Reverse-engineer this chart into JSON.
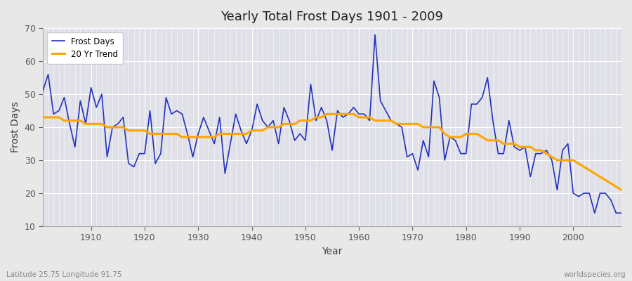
{
  "title": "Yearly Total Frost Days 1901 - 2009",
  "xlabel": "Year",
  "ylabel": "Frost Days",
  "footer_left": "Latitude 25.75 Longitude 91.75",
  "footer_right": "worldspecies.org",
  "legend_labels": [
    "Frost Days",
    "20 Yr Trend"
  ],
  "line_color": "#2233bb",
  "trend_color": "#FFA500",
  "background_color": "#e8e8e8",
  "plot_bg_color": "#e0e0e8",
  "ylim": [
    10,
    70
  ],
  "xlim": [
    1901,
    2009
  ],
  "yticks": [
    10,
    20,
    30,
    40,
    50,
    60,
    70
  ],
  "xticks": [
    1910,
    1920,
    1930,
    1940,
    1950,
    1960,
    1970,
    1980,
    1990,
    2000
  ],
  "frost_days": {
    "1901": 51,
    "1902": 56,
    "1903": 44,
    "1904": 45,
    "1905": 49,
    "1906": 41,
    "1907": 34,
    "1908": 48,
    "1909": 41,
    "1910": 52,
    "1911": 46,
    "1912": 50,
    "1913": 31,
    "1914": 40,
    "1915": 41,
    "1916": 43,
    "1917": 29,
    "1918": 28,
    "1919": 32,
    "1920": 32,
    "1921": 45,
    "1922": 29,
    "1923": 32,
    "1924": 49,
    "1925": 44,
    "1926": 45,
    "1927": 44,
    "1928": 38,
    "1929": 31,
    "1930": 38,
    "1931": 43,
    "1932": 39,
    "1933": 35,
    "1934": 43,
    "1935": 26,
    "1936": 35,
    "1937": 44,
    "1938": 39,
    "1939": 35,
    "1940": 39,
    "1941": 47,
    "1942": 42,
    "1943": 40,
    "1944": 42,
    "1945": 35,
    "1946": 46,
    "1947": 42,
    "1948": 36,
    "1949": 38,
    "1950": 36,
    "1951": 53,
    "1952": 42,
    "1953": 46,
    "1954": 42,
    "1955": 33,
    "1956": 45,
    "1957": 43,
    "1958": 44,
    "1959": 46,
    "1960": 44,
    "1961": 44,
    "1962": 42,
    "1963": 68,
    "1964": 48,
    "1965": 45,
    "1966": 42,
    "1967": 41,
    "1968": 40,
    "1969": 31,
    "1970": 32,
    "1971": 27,
    "1972": 36,
    "1973": 31,
    "1974": 54,
    "1975": 49,
    "1976": 30,
    "1977": 37,
    "1978": 36,
    "1979": 32,
    "1980": 32,
    "1981": 47,
    "1982": 47,
    "1983": 49,
    "1984": 55,
    "1985": 42,
    "1986": 32,
    "1987": 32,
    "1988": 42,
    "1989": 34,
    "1990": 33,
    "1991": 34,
    "1992": 25,
    "1993": 32,
    "1994": 32,
    "1995": 33,
    "1996": 30,
    "1997": 21,
    "1998": 33,
    "1999": 35,
    "2000": 20,
    "2001": 19,
    "2002": 20,
    "2003": 20,
    "2004": 14,
    "2005": 20,
    "2006": 20,
    "2007": 18,
    "2008": 14,
    "2009": 14
  },
  "trend_days": {
    "1901": 43,
    "1902": 43,
    "1903": 43,
    "1904": 43,
    "1905": 42,
    "1906": 42,
    "1907": 42,
    "1908": 42,
    "1909": 41,
    "1910": 41,
    "1911": 41,
    "1912": 41,
    "1913": 40,
    "1914": 40,
    "1915": 40,
    "1916": 40,
    "1917": 39,
    "1918": 39,
    "1919": 39,
    "1920": 39,
    "1921": 38,
    "1922": 38,
    "1923": 38,
    "1924": 38,
    "1925": 38,
    "1926": 38,
    "1927": 37,
    "1928": 37,
    "1929": 37,
    "1930": 37,
    "1931": 37,
    "1932": 37,
    "1933": 37,
    "1934": 38,
    "1935": 38,
    "1936": 38,
    "1937": 38,
    "1938": 38,
    "1939": 38,
    "1940": 39,
    "1941": 39,
    "1942": 39,
    "1943": 40,
    "1944": 40,
    "1945": 40,
    "1946": 41,
    "1947": 41,
    "1948": 41,
    "1949": 42,
    "1950": 42,
    "1951": 42,
    "1952": 43,
    "1953": 43,
    "1954": 44,
    "1955": 44,
    "1956": 44,
    "1957": 44,
    "1958": 44,
    "1959": 44,
    "1960": 43,
    "1961": 43,
    "1962": 43,
    "1963": 42,
    "1964": 42,
    "1965": 42,
    "1966": 42,
    "1967": 41,
    "1968": 41,
    "1969": 41,
    "1970": 41,
    "1971": 41,
    "1972": 40,
    "1973": 40,
    "1974": 40,
    "1975": 40,
    "1976": 38,
    "1977": 37,
    "1978": 37,
    "1979": 37,
    "1980": 38,
    "1981": 38,
    "1982": 38,
    "1983": 37,
    "1984": 36,
    "1985": 36,
    "1986": 36,
    "1987": 35,
    "1988": 35,
    "1989": 35,
    "1990": 34,
    "1991": 34,
    "1992": 34,
    "1993": 33,
    "1994": 33,
    "1995": 32,
    "1996": 31,
    "1997": 30,
    "1998": 30,
    "1999": 30,
    "2000": 30,
    "2001": 29,
    "2002": 28,
    "2003": 27,
    "2004": 26,
    "2005": 25,
    "2006": 24,
    "2007": 23,
    "2008": 22,
    "2009": 21
  }
}
